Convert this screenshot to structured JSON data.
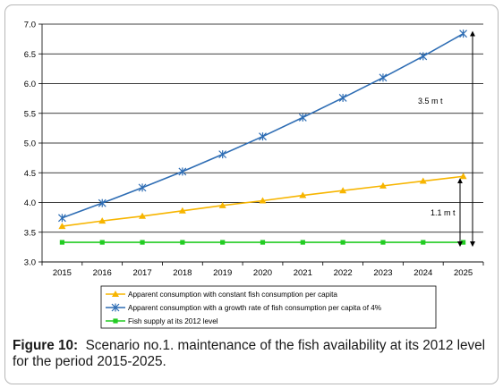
{
  "chart_data": {
    "type": "line",
    "x": [
      2015,
      2016,
      2017,
      2018,
      2019,
      2020,
      2021,
      2022,
      2023,
      2024,
      2025
    ],
    "ylim": [
      3.0,
      7.0
    ],
    "yticks": [
      "3.0",
      "3.5",
      "4.0",
      "4.5",
      "5.0",
      "5.5",
      "6.0",
      "6.5",
      "7.0"
    ],
    "xticks": [
      "2015",
      "2016",
      "2017",
      "2018",
      "2019",
      "2020",
      "2021",
      "2022",
      "2023",
      "2024",
      "2025"
    ],
    "grid": "horizontal",
    "legend_position": "bottom",
    "series": [
      {
        "name": "Apparent consumption with constant fish consumption per capita",
        "color": "#f7b500",
        "marker": "triangle",
        "values": [
          3.6,
          3.69,
          3.77,
          3.86,
          3.95,
          4.03,
          4.12,
          4.2,
          4.28,
          4.36,
          4.44
        ]
      },
      {
        "name": "Apparent consumption with a growth rate of fish consumption per capita of 4%",
        "color": "#2e6db4",
        "marker": "asterisk",
        "values": [
          3.74,
          3.99,
          4.25,
          4.52,
          4.81,
          5.11,
          5.43,
          5.76,
          6.1,
          6.46,
          6.84
        ]
      },
      {
        "name": "Fish supply at its 2012 level",
        "color": "#22cc22",
        "marker": "square",
        "values": [
          3.33,
          3.33,
          3.33,
          3.33,
          3.33,
          3.33,
          3.33,
          3.33,
          3.33,
          3.33,
          3.33
        ]
      }
    ],
    "annotations": [
      "3.5 m t",
      "1.1 m t"
    ]
  },
  "caption": {
    "label": "Figure 10:",
    "text": "Scenario no.1. maintenance of the fish availability at its 2012 level for the period 2015-2025."
  }
}
